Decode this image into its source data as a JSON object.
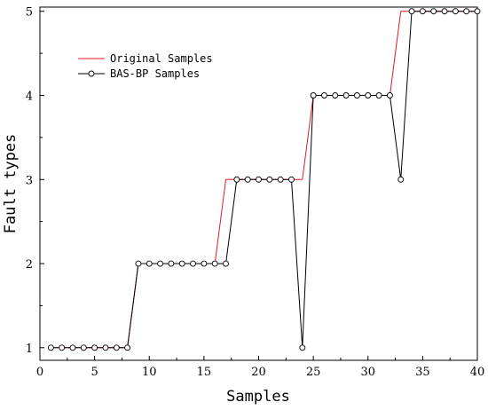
{
  "chart_data": {
    "type": "line",
    "xlabel": "Samples",
    "ylabel": "Fault types",
    "xlim": [
      0,
      40
    ],
    "ylim": [
      0.85,
      5.05
    ],
    "xticks": [
      0,
      5,
      10,
      15,
      20,
      25,
      30,
      35,
      40
    ],
    "yticks": [
      1,
      2,
      3,
      4,
      5
    ],
    "grid": false,
    "legend_position": "top-left",
    "series": [
      {
        "name": "Original Samples",
        "color": "#e41a1c",
        "marker": "none",
        "x": [
          1,
          2,
          3,
          4,
          5,
          6,
          7,
          8,
          9,
          10,
          11,
          12,
          13,
          14,
          15,
          16,
          17,
          18,
          19,
          20,
          21,
          22,
          23,
          24,
          25,
          26,
          27,
          28,
          29,
          30,
          31,
          32,
          33,
          34,
          35,
          36,
          37,
          38,
          39,
          40
        ],
        "y": [
          1,
          1,
          1,
          1,
          1,
          1,
          1,
          1,
          2,
          2,
          2,
          2,
          2,
          2,
          2,
          2,
          3,
          3,
          3,
          3,
          3,
          3,
          3,
          3,
          4,
          4,
          4,
          4,
          4,
          4,
          4,
          4,
          5,
          5,
          5,
          5,
          5,
          5,
          5,
          5
        ]
      },
      {
        "name": "BAS-BP Samples",
        "color": "#000000",
        "marker": "circle",
        "x": [
          1,
          2,
          3,
          4,
          5,
          6,
          7,
          8,
          9,
          10,
          11,
          12,
          13,
          14,
          15,
          16,
          17,
          18,
          19,
          20,
          21,
          22,
          23,
          24,
          25,
          26,
          27,
          28,
          29,
          30,
          31,
          32,
          33,
          34,
          35,
          36,
          37,
          38,
          39,
          40
        ],
        "y": [
          1,
          1,
          1,
          1,
          1,
          1,
          1,
          1,
          2,
          2,
          2,
          2,
          2,
          2,
          2,
          2,
          2,
          3,
          3,
          3,
          3,
          3,
          3,
          1,
          4,
          4,
          4,
          4,
          4,
          4,
          4,
          4,
          3,
          5,
          5,
          5,
          5,
          5,
          5,
          5
        ]
      }
    ]
  }
}
